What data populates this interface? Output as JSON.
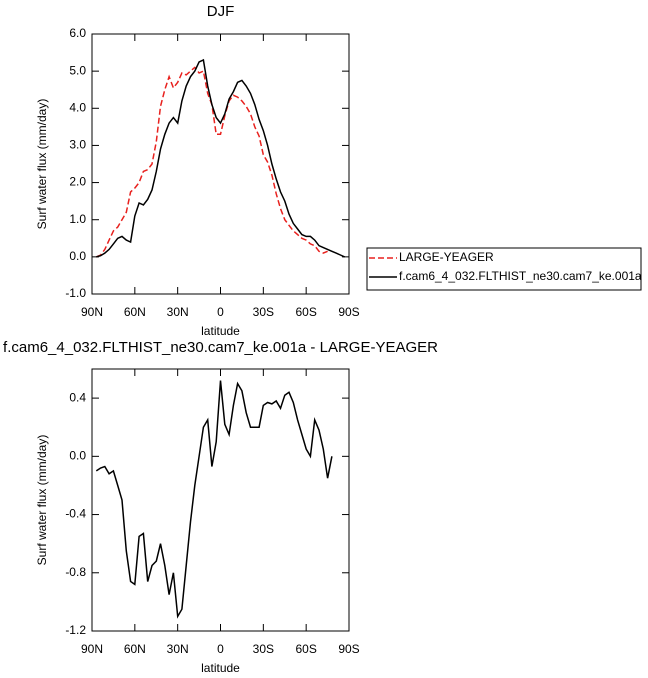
{
  "chart_data": [
    {
      "type": "line",
      "title": "DJF",
      "xlabel": "latitude",
      "ylabel": "Surf water flux (mm/day)",
      "x": [
        87,
        84,
        81,
        78,
        75,
        72,
        69,
        66,
        63,
        60,
        57,
        54,
        51,
        48,
        45,
        42,
        39,
        36,
        33,
        30,
        27,
        24,
        21,
        18,
        15,
        12,
        9,
        6,
        3,
        0,
        -3,
        -6,
        -9,
        -12,
        -15,
        -18,
        -21,
        -24,
        -27,
        -30,
        -33,
        -36,
        -39,
        -42,
        -45,
        -48,
        -51,
        -54,
        -57,
        -60,
        -63,
        -66,
        -69,
        -72,
        -75,
        -78,
        -81,
        -84,
        -87
      ],
      "xlim": [
        90,
        -90
      ],
      "xticks": [
        {
          "value": 90,
          "label": "90N"
        },
        {
          "value": 60,
          "label": "60N"
        },
        {
          "value": 30,
          "label": "30N"
        },
        0,
        {
          "value": -30,
          "label": "30S"
        },
        {
          "value": -60,
          "label": "60S"
        },
        {
          "value": -90,
          "label": "90S"
        }
      ],
      "ylim": [
        -1,
        6
      ],
      "yticks": [
        {
          "value": 6,
          "label": "6.0"
        },
        {
          "value": 5,
          "label": "5.0"
        },
        {
          "value": 4,
          "label": "4.0"
        },
        {
          "value": 3,
          "label": "3.0"
        },
        {
          "value": 2,
          "label": "2.0"
        },
        {
          "value": 1,
          "label": "1.0"
        },
        {
          "value": 0,
          "label": "0.0"
        },
        {
          "value": -1,
          "label": "-1.0"
        }
      ],
      "legend": "right",
      "series": [
        {
          "name": "LARGE-YEAGER",
          "color": "#e8211e",
          "style": "dashed",
          "values": [
            0.0,
            0.05,
            0.2,
            0.45,
            0.7,
            0.8,
            1.0,
            1.2,
            1.75,
            1.85,
            2.0,
            2.3,
            2.35,
            2.5,
            3.1,
            4.05,
            4.5,
            4.85,
            4.55,
            4.7,
            4.95,
            4.9,
            5.0,
            5.1,
            4.95,
            5.0,
            4.4,
            4.1,
            3.3,
            3.3,
            3.8,
            4.2,
            4.35,
            4.3,
            4.2,
            4.05,
            3.85,
            3.5,
            3.25,
            2.75,
            2.55,
            2.2,
            1.7,
            1.3,
            1.0,
            0.85,
            0.7,
            0.6,
            0.5,
            0.45,
            0.35,
            0.3,
            0.15,
            0.1,
            0.15,
            null,
            null,
            null,
            null
          ]
        },
        {
          "name": "f.cam6_4_032.FLTHIST_ne30.cam7_ke.001a",
          "color": "#000000",
          "style": "solid",
          "values": [
            0.0,
            0.03,
            0.1,
            0.2,
            0.35,
            0.5,
            0.55,
            0.45,
            0.4,
            1.1,
            1.45,
            1.4,
            1.55,
            1.8,
            2.3,
            2.9,
            3.3,
            3.6,
            3.75,
            3.6,
            4.2,
            4.6,
            4.85,
            5.0,
            5.25,
            5.3,
            4.6,
            4.1,
            3.75,
            3.6,
            3.85,
            4.25,
            4.45,
            4.7,
            4.75,
            4.6,
            4.4,
            4.1,
            3.7,
            3.4,
            3.0,
            2.5,
            2.1,
            1.75,
            1.5,
            1.15,
            0.9,
            0.75,
            0.6,
            0.55,
            0.55,
            0.45,
            0.3,
            0.25,
            0.2,
            0.15,
            0.1,
            0.05,
            0.0
          ]
        }
      ]
    },
    {
      "type": "line",
      "title": "f.cam6_4_032.FLTHIST_ne30.cam7_ke.001a - LARGE-YEAGER",
      "xlabel": "latitude",
      "ylabel": "Surf water flux (mm/day)",
      "x": [
        87,
        84,
        81,
        78,
        75,
        72,
        69,
        66,
        63,
        60,
        57,
        54,
        51,
        48,
        45,
        42,
        39,
        36,
        33,
        30,
        27,
        24,
        21,
        18,
        15,
        12,
        9,
        6,
        3,
        0,
        -3,
        -6,
        -9,
        -12,
        -15,
        -18,
        -21,
        -24,
        -27,
        -30,
        -33,
        -36,
        -39,
        -42,
        -45,
        -48,
        -51,
        -54,
        -57,
        -60,
        -63,
        -66,
        -69,
        -72,
        -75,
        -78
      ],
      "xlim": [
        90,
        -90
      ],
      "xticks": [
        {
          "value": 90,
          "label": "90N"
        },
        {
          "value": 60,
          "label": "60N"
        },
        {
          "value": 30,
          "label": "30N"
        },
        0,
        {
          "value": -30,
          "label": "30S"
        },
        {
          "value": -60,
          "label": "60S"
        },
        {
          "value": -90,
          "label": "90S"
        }
      ],
      "ylim": [
        -1.2,
        0.6
      ],
      "yticks": [
        0.4,
        {
          "value": 0,
          "label": "0.0"
        },
        -0.4,
        -0.8,
        -1.2
      ],
      "color": "#000000",
      "values": [
        -0.1,
        -0.08,
        -0.07,
        -0.12,
        -0.1,
        -0.2,
        -0.3,
        -0.65,
        -0.86,
        -0.88,
        -0.55,
        -0.53,
        -0.86,
        -0.75,
        -0.72,
        -0.6,
        -0.75,
        -0.95,
        -0.8,
        -1.1,
        -1.05,
        -0.75,
        -0.45,
        -0.2,
        0.0,
        0.2,
        0.25,
        -0.07,
        0.1,
        0.52,
        0.22,
        0.15,
        0.35,
        0.5,
        0.45,
        0.3,
        0.2,
        0.2,
        0.2,
        0.35,
        0.37,
        0.36,
        0.38,
        0.33,
        0.42,
        0.44,
        0.37,
        0.25,
        0.15,
        0.05,
        0.0,
        0.25,
        0.18,
        0.05,
        -0.15,
        0.0
      ]
    }
  ]
}
